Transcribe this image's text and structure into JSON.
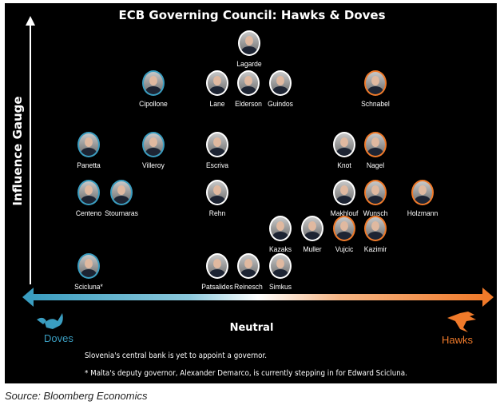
{
  "title": "ECB Governing Council: Hawks & Doves",
  "y_axis_label": "Influence Gauge",
  "x_axis": {
    "left_label": "Doves",
    "center_label": "Neutral",
    "right_label": "Hawks"
  },
  "colors": {
    "dove": "#3a9dc0",
    "hawk": "#f07a2a",
    "neutral": "#ffffff",
    "background": "#000000"
  },
  "members": [
    {
      "name": "Lagarde",
      "stance": "neutral"
    },
    {
      "name": "Cipollone",
      "stance": "dove"
    },
    {
      "name": "Lane",
      "stance": "neutral"
    },
    {
      "name": "Elderson",
      "stance": "neutral"
    },
    {
      "name": "Guindos",
      "stance": "neutral"
    },
    {
      "name": "Schnabel",
      "stance": "hawk"
    },
    {
      "name": "Panetta",
      "stance": "dove"
    },
    {
      "name": "Villeroy",
      "stance": "dove"
    },
    {
      "name": "Escriva",
      "stance": "neutral"
    },
    {
      "name": "Knot",
      "stance": "neutral"
    },
    {
      "name": "Nagel",
      "stance": "hawk"
    },
    {
      "name": "Centeno",
      "stance": "dove"
    },
    {
      "name": "Stournaras",
      "stance": "dove"
    },
    {
      "name": "Rehn",
      "stance": "neutral"
    },
    {
      "name": "Makhlouf",
      "stance": "neutral"
    },
    {
      "name": "Wunsch",
      "stance": "hawk"
    },
    {
      "name": "Holzmann",
      "stance": "hawk"
    },
    {
      "name": "Kazaks",
      "stance": "neutral"
    },
    {
      "name": "Muller",
      "stance": "neutral"
    },
    {
      "name": "Vujcic",
      "stance": "hawk"
    },
    {
      "name": "Kazimir",
      "stance": "hawk"
    },
    {
      "name": "Scicluna*",
      "stance": "dove"
    },
    {
      "name": "Patsalides",
      "stance": "neutral"
    },
    {
      "name": "Reinesch",
      "stance": "neutral"
    },
    {
      "name": "Simkus",
      "stance": "neutral"
    }
  ],
  "notes": [
    "Slovenia's central bank is yet to appoint a governor.",
    "* Malta's deputy governor, Alexander Demarco, is currently stepping in for Edward Scicluna."
  ],
  "source": "Source: Bloomberg Economics"
}
